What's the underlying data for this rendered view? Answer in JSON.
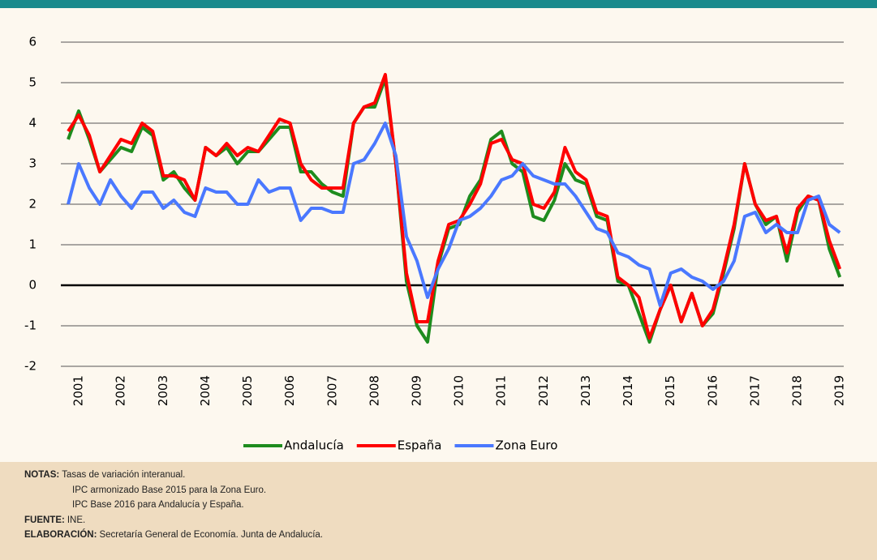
{
  "chart_data": {
    "type": "line",
    "categories": [
      null,
      "2001",
      null,
      null,
      null,
      "2002",
      null,
      null,
      null,
      "2003",
      null,
      null,
      null,
      "2004",
      null,
      null,
      null,
      "2005",
      null,
      null,
      null,
      "2006",
      null,
      null,
      null,
      "2007",
      null,
      null,
      null,
      "2008",
      null,
      null,
      null,
      "2009",
      null,
      null,
      null,
      "2010",
      null,
      null,
      null,
      "2011",
      null,
      null,
      null,
      "2012",
      null,
      null,
      null,
      "2013",
      null,
      null,
      null,
      "2014",
      null,
      null,
      null,
      "2015",
      null,
      null,
      null,
      "2016",
      null,
      null,
      null,
      "2017",
      null,
      null,
      null,
      "2018",
      null,
      null,
      null,
      "2019"
    ],
    "series": [
      {
        "name": "Andalucía",
        "color": "#1e8c1e",
        "values": [
          3.6,
          4.3,
          3.6,
          2.8,
          3.1,
          3.4,
          3.3,
          3.9,
          3.7,
          2.6,
          2.8,
          2.4,
          2.1,
          3.4,
          3.2,
          3.4,
          3.0,
          3.3,
          3.3,
          3.6,
          3.9,
          3.9,
          2.8,
          2.8,
          2.5,
          2.3,
          2.2,
          4.0,
          4.4,
          4.4,
          5.1,
          3.0,
          0.1,
          -1.0,
          -1.4,
          0.5,
          1.4,
          1.5,
          2.2,
          2.6,
          3.6,
          3.8,
          3.0,
          2.8,
          1.7,
          1.6,
          2.1,
          3.0,
          2.6,
          2.5,
          1.7,
          1.6,
          0.1,
          0.0,
          -0.7,
          -1.4,
          -0.6,
          0.0,
          -0.9,
          -0.2,
          -1.0,
          -0.7,
          0.3,
          1.4,
          3.0,
          2.0,
          1.5,
          1.7,
          0.6,
          1.8,
          2.2,
          2.1,
          0.9,
          0.2
        ]
      },
      {
        "name": "España",
        "color": "#ff0000",
        "values": [
          3.8,
          4.2,
          3.7,
          2.8,
          3.2,
          3.6,
          3.5,
          4.0,
          3.8,
          2.7,
          2.7,
          2.6,
          2.1,
          3.4,
          3.2,
          3.5,
          3.2,
          3.4,
          3.3,
          3.7,
          4.1,
          4.0,
          3.0,
          2.6,
          2.4,
          2.4,
          2.4,
          4.0,
          4.4,
          4.5,
          5.2,
          3.0,
          0.3,
          -0.9,
          -0.9,
          0.6,
          1.5,
          1.6,
          2.0,
          2.5,
          3.5,
          3.6,
          3.1,
          3.0,
          2.0,
          1.9,
          2.3,
          3.4,
          2.8,
          2.6,
          1.8,
          1.7,
          0.2,
          0.0,
          -0.3,
          -1.3,
          -0.6,
          0.0,
          -0.9,
          -0.2,
          -1.0,
          -0.6,
          0.4,
          1.5,
          3.0,
          2.0,
          1.6,
          1.7,
          0.8,
          1.9,
          2.2,
          2.1,
          1.1,
          0.4
        ]
      },
      {
        "name": "Zona Euro",
        "color": "#4a78ff",
        "values": [
          2.0,
          3.0,
          2.4,
          2.0,
          2.6,
          2.2,
          1.9,
          2.3,
          2.3,
          1.9,
          2.1,
          1.8,
          1.7,
          2.4,
          2.3,
          2.3,
          2.0,
          2.0,
          2.6,
          2.3,
          2.4,
          2.4,
          1.6,
          1.9,
          1.9,
          1.8,
          1.8,
          3.0,
          3.1,
          3.5,
          4.0,
          3.2,
          1.2,
          0.6,
          -0.3,
          0.4,
          0.9,
          1.6,
          1.7,
          1.9,
          2.2,
          2.6,
          2.7,
          3.0,
          2.7,
          2.6,
          2.5,
          2.5,
          2.2,
          1.8,
          1.4,
          1.3,
          0.8,
          0.7,
          0.5,
          0.4,
          -0.5,
          0.3,
          0.4,
          0.2,
          0.1,
          -0.1,
          0.1,
          0.6,
          1.7,
          1.8,
          1.3,
          1.5,
          1.3,
          1.3,
          2.1,
          2.2,
          1.5,
          1.3
        ]
      }
    ],
    "ylim": [
      -2,
      6
    ],
    "yticks": [
      -2,
      -1,
      0,
      1,
      2,
      3,
      4,
      5,
      6
    ],
    "grid": true,
    "legend": "bottom",
    "notes": [
      {
        "label": "NOTAS:",
        "text": "Tasas de variación interanual."
      },
      {
        "text": "IPC armonizado Base 2015 para la Zona Euro."
      },
      {
        "text": "IPC Base 2016 para Andalucía y España."
      },
      {
        "label": "FUENTE:",
        "text": "INE."
      },
      {
        "label": "ELABORACIÓN:",
        "text": "Secretaría General de Economía. Junta de Andalucía."
      }
    ]
  }
}
